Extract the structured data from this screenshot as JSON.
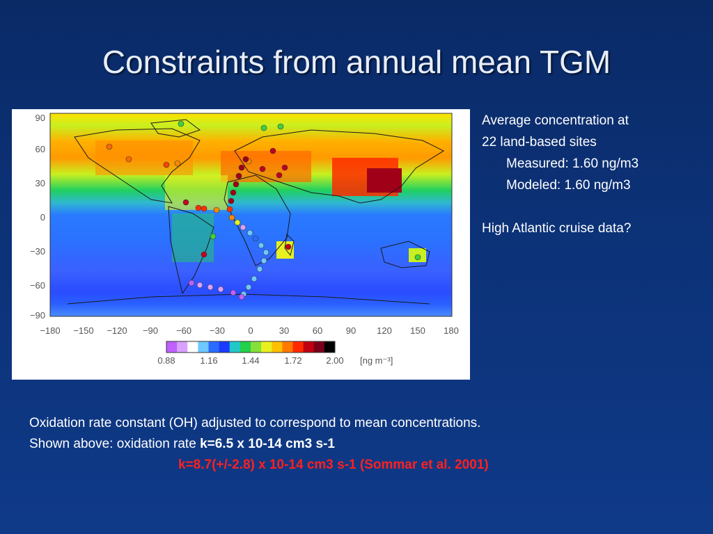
{
  "slide": {
    "title": "Constraints from annual mean TGM"
  },
  "figure": {
    "y_ticks": [
      "90",
      "60",
      "30",
      "0",
      "−30",
      "−60",
      "−90"
    ],
    "x_ticks": [
      "−180",
      "−150",
      "−120",
      "−90",
      "−60",
      "−30",
      "0",
      "30",
      "60",
      "90",
      "120",
      "150",
      "180"
    ],
    "colorbar": {
      "ticks": [
        "0.88",
        "1.16",
        "1.44",
        "1.72",
        "2.00"
      ],
      "unit": "[ng m⁻³]",
      "colors": [
        "#c060ff",
        "#d9a0ff",
        "#ffffff",
        "#6fc8ff",
        "#2a6cff",
        "#1a3cff",
        "#22c8c8",
        "#22d04a",
        "#86e03a",
        "#e8f020",
        "#ffc000",
        "#ff7a00",
        "#ff2a00",
        "#c00010",
        "#7a0018",
        "#000000"
      ]
    },
    "icons": [
      "world-map"
    ]
  },
  "side_text": {
    "line1": "Average concentration at",
    "line2": "22 land-based sites",
    "measured": "Measured: 1.60 ng/m3",
    "modeled": "Modeled: 1.60 ng/m3",
    "question": "High Atlantic cruise data?"
  },
  "bottom_text": {
    "line1": "Oxidation rate constant (OH) adjusted to correspond to mean concentrations.",
    "line2_prefix": "Shown above: oxidation rate ",
    "line2_bold": "k=6.5 x 10-14 cm3 s-1",
    "line3_red": "k=8.7(+/-2.8) x 10-14 cm3 s-1 (Sommar et al. 2001)"
  },
  "colors": {
    "background": "#0c3278",
    "title": "#e8eef8",
    "highlight_red": "#ff2020"
  }
}
